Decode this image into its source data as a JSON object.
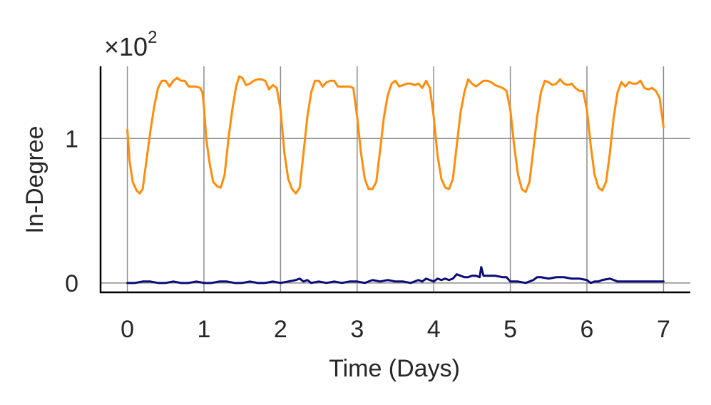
{
  "chart_data": {
    "type": "line",
    "xlabel": "Time (Days)",
    "ylabel": "In-Degree",
    "y_multiplier": {
      "base": "×10",
      "exponent": "2"
    },
    "xlim": [
      -0.35,
      7.35
    ],
    "ylim": [
      -0.065,
      1.5
    ],
    "x_ticks": [
      0,
      1,
      2,
      3,
      4,
      5,
      6,
      7
    ],
    "x_tick_labels": [
      "0",
      "1",
      "2",
      "3",
      "4",
      "5",
      "6",
      "7"
    ],
    "y_ticks": [
      0,
      1
    ],
    "y_tick_labels": [
      "0",
      "1"
    ],
    "grid": true,
    "colors": {
      "series_1": "#ff8c0a",
      "series_2": "#0a0a7a",
      "grid": "#8c8c8c",
      "axis": "#000000"
    },
    "series": [
      {
        "color": "#ff8c0a",
        "points": [
          [
            0,
            1.06
          ],
          [
            0.03,
            0.84
          ],
          [
            0.07,
            0.7
          ],
          [
            0.12,
            0.64
          ],
          [
            0.16,
            0.62
          ],
          [
            0.2,
            0.65
          ],
          [
            0.25,
            0.85
          ],
          [
            0.3,
            1.05
          ],
          [
            0.35,
            1.22
          ],
          [
            0.4,
            1.35
          ],
          [
            0.45,
            1.4
          ],
          [
            0.5,
            1.4
          ],
          [
            0.55,
            1.36
          ],
          [
            0.6,
            1.4
          ],
          [
            0.65,
            1.42
          ],
          [
            0.7,
            1.4
          ],
          [
            0.75,
            1.4
          ],
          [
            0.8,
            1.36
          ],
          [
            0.85,
            1.36
          ],
          [
            0.9,
            1.36
          ],
          [
            0.95,
            1.35
          ],
          [
            0.98,
            1.32
          ],
          [
            1.0,
            1.22
          ],
          [
            1.03,
            1.0
          ],
          [
            1.07,
            0.84
          ],
          [
            1.12,
            0.7
          ],
          [
            1.17,
            0.67
          ],
          [
            1.22,
            0.66
          ],
          [
            1.27,
            0.75
          ],
          [
            1.32,
            1.0
          ],
          [
            1.37,
            1.2
          ],
          [
            1.42,
            1.36
          ],
          [
            1.46,
            1.43
          ],
          [
            1.5,
            1.42
          ],
          [
            1.55,
            1.37
          ],
          [
            1.6,
            1.38
          ],
          [
            1.65,
            1.4
          ],
          [
            1.7,
            1.41
          ],
          [
            1.75,
            1.41
          ],
          [
            1.8,
            1.4
          ],
          [
            1.85,
            1.34
          ],
          [
            1.9,
            1.37
          ],
          [
            1.95,
            1.35
          ],
          [
            2.0,
            1.2
          ],
          [
            2.05,
            0.9
          ],
          [
            2.1,
            0.72
          ],
          [
            2.15,
            0.65
          ],
          [
            2.2,
            0.62
          ],
          [
            2.25,
            0.66
          ],
          [
            2.3,
            0.9
          ],
          [
            2.35,
            1.15
          ],
          [
            2.4,
            1.32
          ],
          [
            2.45,
            1.4
          ],
          [
            2.5,
            1.4
          ],
          [
            2.55,
            1.36
          ],
          [
            2.6,
            1.39
          ],
          [
            2.65,
            1.4
          ],
          [
            2.7,
            1.4
          ],
          [
            2.75,
            1.36
          ],
          [
            2.8,
            1.36
          ],
          [
            2.85,
            1.36
          ],
          [
            2.9,
            1.36
          ],
          [
            2.95,
            1.35
          ],
          [
            3.0,
            1.15
          ],
          [
            3.05,
            0.9
          ],
          [
            3.1,
            0.72
          ],
          [
            3.15,
            0.65
          ],
          [
            3.2,
            0.65
          ],
          [
            3.25,
            0.7
          ],
          [
            3.3,
            0.92
          ],
          [
            3.35,
            1.15
          ],
          [
            3.4,
            1.3
          ],
          [
            3.45,
            1.38
          ],
          [
            3.5,
            1.4
          ],
          [
            3.55,
            1.36
          ],
          [
            3.6,
            1.37
          ],
          [
            3.65,
            1.38
          ],
          [
            3.7,
            1.38
          ],
          [
            3.75,
            1.37
          ],
          [
            3.8,
            1.38
          ],
          [
            3.85,
            1.35
          ],
          [
            3.9,
            1.4
          ],
          [
            3.95,
            1.35
          ],
          [
            4.0,
            1.15
          ],
          [
            4.05,
            0.88
          ],
          [
            4.1,
            0.72
          ],
          [
            4.15,
            0.66
          ],
          [
            4.2,
            0.65
          ],
          [
            4.25,
            0.72
          ],
          [
            4.3,
            0.95
          ],
          [
            4.35,
            1.18
          ],
          [
            4.4,
            1.32
          ],
          [
            4.45,
            1.41
          ],
          [
            4.5,
            1.38
          ],
          [
            4.55,
            1.36
          ],
          [
            4.6,
            1.38
          ],
          [
            4.65,
            1.4
          ],
          [
            4.7,
            1.4
          ],
          [
            4.75,
            1.39
          ],
          [
            4.8,
            1.37
          ],
          [
            4.85,
            1.36
          ],
          [
            4.9,
            1.35
          ],
          [
            4.95,
            1.33
          ],
          [
            5.0,
            1.2
          ],
          [
            5.05,
            0.95
          ],
          [
            5.1,
            0.75
          ],
          [
            5.15,
            0.65
          ],
          [
            5.2,
            0.63
          ],
          [
            5.25,
            0.7
          ],
          [
            5.3,
            0.92
          ],
          [
            5.35,
            1.15
          ],
          [
            5.4,
            1.32
          ],
          [
            5.45,
            1.4
          ],
          [
            5.5,
            1.39
          ],
          [
            5.55,
            1.37
          ],
          [
            5.6,
            1.38
          ],
          [
            5.65,
            1.41
          ],
          [
            5.7,
            1.38
          ],
          [
            5.75,
            1.37
          ],
          [
            5.8,
            1.38
          ],
          [
            5.85,
            1.35
          ],
          [
            5.9,
            1.33
          ],
          [
            5.95,
            1.33
          ],
          [
            6.0,
            1.2
          ],
          [
            6.05,
            0.95
          ],
          [
            6.1,
            0.75
          ],
          [
            6.15,
            0.66
          ],
          [
            6.2,
            0.64
          ],
          [
            6.25,
            0.7
          ],
          [
            6.3,
            0.9
          ],
          [
            6.35,
            1.15
          ],
          [
            6.4,
            1.32
          ],
          [
            6.45,
            1.39
          ],
          [
            6.5,
            1.36
          ],
          [
            6.55,
            1.39
          ],
          [
            6.6,
            1.38
          ],
          [
            6.65,
            1.38
          ],
          [
            6.7,
            1.4
          ],
          [
            6.75,
            1.35
          ],
          [
            6.8,
            1.34
          ],
          [
            6.85,
            1.35
          ],
          [
            6.9,
            1.33
          ],
          [
            6.95,
            1.28
          ],
          [
            7.0,
            1.08
          ]
        ]
      },
      {
        "color": "#0a0a7a",
        "points": [
          [
            0,
            0.0
          ],
          [
            0.1,
            0.0
          ],
          [
            0.2,
            0.01
          ],
          [
            0.3,
            0.01
          ],
          [
            0.4,
            0.0
          ],
          [
            0.5,
            0.0
          ],
          [
            0.6,
            0.01
          ],
          [
            0.7,
            0.0
          ],
          [
            0.8,
            0.0
          ],
          [
            0.9,
            0.01
          ],
          [
            1.0,
            0.0
          ],
          [
            1.1,
            0.0
          ],
          [
            1.2,
            0.01
          ],
          [
            1.3,
            0.01
          ],
          [
            1.4,
            0.0
          ],
          [
            1.5,
            0.0
          ],
          [
            1.6,
            0.01
          ],
          [
            1.7,
            0.0
          ],
          [
            1.8,
            0.0
          ],
          [
            1.9,
            0.01
          ],
          [
            2.0,
            0.0
          ],
          [
            2.1,
            0.01
          ],
          [
            2.2,
            0.02
          ],
          [
            2.25,
            0.03
          ],
          [
            2.3,
            0.01
          ],
          [
            2.35,
            0.02
          ],
          [
            2.4,
            0.0
          ],
          [
            2.5,
            0.01
          ],
          [
            2.6,
            0.0
          ],
          [
            2.7,
            0.01
          ],
          [
            2.8,
            0.0
          ],
          [
            2.9,
            0.01
          ],
          [
            3.0,
            0.01
          ],
          [
            3.1,
            0.0
          ],
          [
            3.2,
            0.02
          ],
          [
            3.3,
            0.01
          ],
          [
            3.4,
            0.02
          ],
          [
            3.5,
            0.01
          ],
          [
            3.6,
            0.01
          ],
          [
            3.7,
            0.0
          ],
          [
            3.8,
            0.02
          ],
          [
            3.85,
            0.01
          ],
          [
            3.9,
            0.03
          ],
          [
            3.95,
            0.02
          ],
          [
            4.0,
            0.01
          ],
          [
            4.05,
            0.03
          ],
          [
            4.1,
            0.02
          ],
          [
            4.15,
            0.03
          ],
          [
            4.2,
            0.02
          ],
          [
            4.25,
            0.03
          ],
          [
            4.3,
            0.06
          ],
          [
            4.35,
            0.05
          ],
          [
            4.4,
            0.04
          ],
          [
            4.45,
            0.04
          ],
          [
            4.5,
            0.05
          ],
          [
            4.55,
            0.05
          ],
          [
            4.6,
            0.04
          ],
          [
            4.62,
            0.11
          ],
          [
            4.65,
            0.05
          ],
          [
            4.7,
            0.05
          ],
          [
            4.8,
            0.05
          ],
          [
            4.9,
            0.04
          ],
          [
            4.95,
            0.04
          ],
          [
            5.0,
            0.01
          ],
          [
            5.1,
            0.01
          ],
          [
            5.2,
            0.0
          ],
          [
            5.3,
            0.02
          ],
          [
            5.35,
            0.04
          ],
          [
            5.4,
            0.04
          ],
          [
            5.5,
            0.03
          ],
          [
            5.6,
            0.04
          ],
          [
            5.7,
            0.04
          ],
          [
            5.8,
            0.03
          ],
          [
            5.9,
            0.03
          ],
          [
            6.0,
            0.02
          ],
          [
            6.05,
            0.0
          ],
          [
            6.1,
            0.01
          ],
          [
            6.15,
            0.01
          ],
          [
            6.2,
            0.02
          ],
          [
            6.3,
            0.03
          ],
          [
            6.35,
            0.02
          ],
          [
            6.4,
            0.01
          ],
          [
            6.5,
            0.01
          ],
          [
            6.6,
            0.01
          ],
          [
            6.7,
            0.01
          ],
          [
            6.8,
            0.01
          ],
          [
            6.9,
            0.01
          ],
          [
            7.0,
            0.01
          ]
        ]
      }
    ]
  }
}
